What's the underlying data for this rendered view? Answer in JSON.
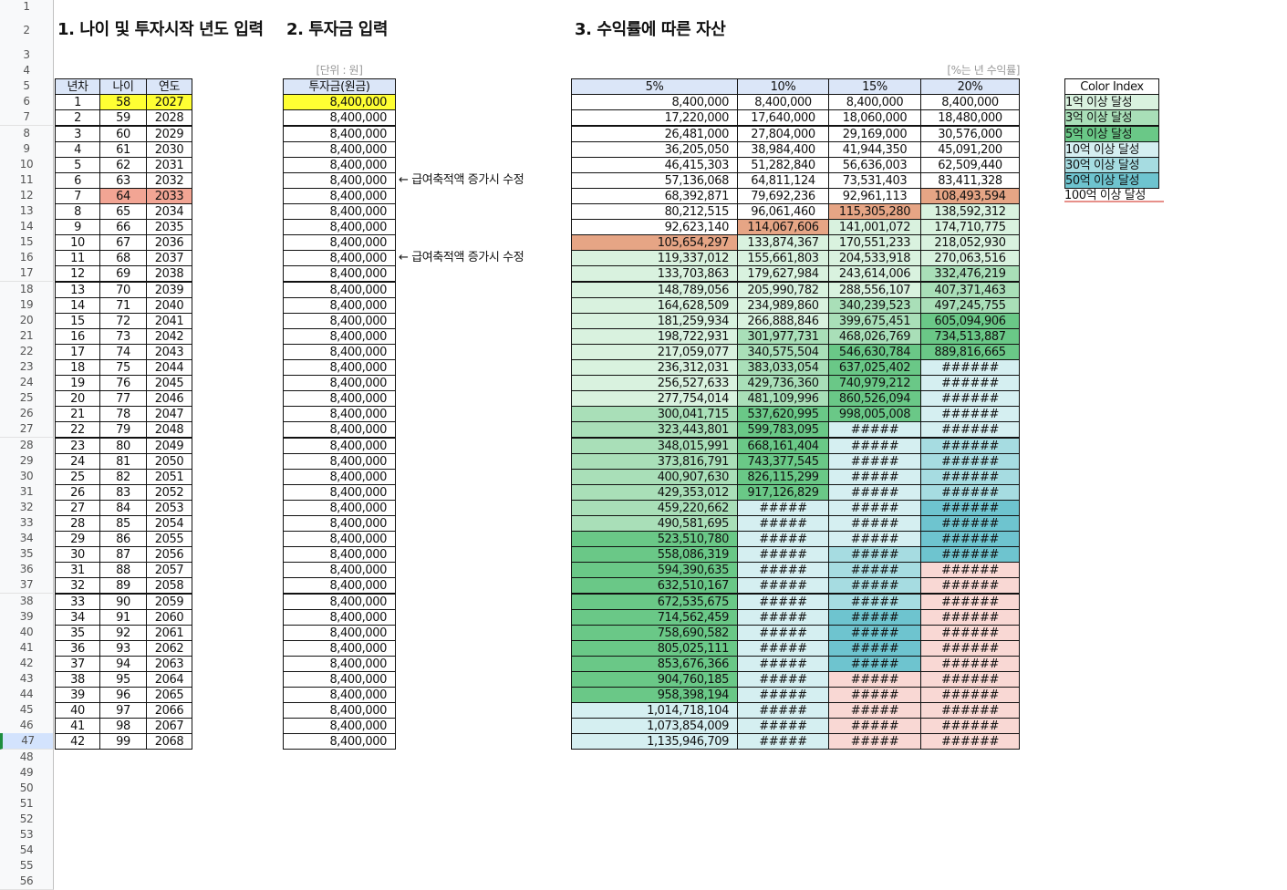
{
  "titles": {
    "age": "1. 나이 및 투자시작 년도 입력",
    "investment": "2. 투자금 입력",
    "returns": "3. 수익률에 따른 자산"
  },
  "row_numbers": [
    1,
    2,
    3,
    4,
    5,
    6,
    7,
    8,
    9,
    10,
    11,
    12,
    13,
    14,
    15,
    16,
    17,
    18,
    19,
    20,
    21,
    22,
    23,
    24,
    25,
    26,
    27,
    28,
    29,
    30,
    31,
    32,
    33,
    34,
    35,
    36,
    37,
    38,
    39,
    40,
    41,
    42,
    43,
    44,
    45,
    46,
    47,
    48,
    49,
    50,
    51,
    52,
    53,
    54,
    55,
    56
  ],
  "age_table": {
    "headers": [
      "년차",
      "나이",
      "연도"
    ],
    "rows": [
      [
        1,
        58,
        2027
      ],
      [
        2,
        59,
        2028
      ],
      [
        3,
        60,
        2029
      ],
      [
        4,
        61,
        2030
      ],
      [
        5,
        62,
        2031
      ],
      [
        6,
        63,
        2032
      ],
      [
        7,
        64,
        2033
      ],
      [
        8,
        65,
        2034
      ],
      [
        9,
        66,
        2035
      ],
      [
        10,
        67,
        2036
      ],
      [
        11,
        68,
        2037
      ],
      [
        12,
        69,
        2038
      ],
      [
        13,
        70,
        2039
      ],
      [
        14,
        71,
        2040
      ],
      [
        15,
        72,
        2041
      ],
      [
        16,
        73,
        2042
      ],
      [
        17,
        74,
        2043
      ],
      [
        18,
        75,
        2044
      ],
      [
        19,
        76,
        2045
      ],
      [
        20,
        77,
        2046
      ],
      [
        21,
        78,
        2047
      ],
      [
        22,
        79,
        2048
      ],
      [
        23,
        80,
        2049
      ],
      [
        24,
        81,
        2050
      ],
      [
        25,
        82,
        2051
      ],
      [
        26,
        83,
        2052
      ],
      [
        27,
        84,
        2053
      ],
      [
        28,
        85,
        2054
      ],
      [
        29,
        86,
        2055
      ],
      [
        30,
        87,
        2056
      ],
      [
        31,
        88,
        2057
      ],
      [
        32,
        89,
        2058
      ],
      [
        33,
        90,
        2059
      ],
      [
        34,
        91,
        2060
      ],
      [
        35,
        92,
        2061
      ],
      [
        36,
        93,
        2062
      ],
      [
        37,
        94,
        2063
      ],
      [
        38,
        95,
        2064
      ],
      [
        39,
        96,
        2065
      ],
      [
        40,
        97,
        2066
      ],
      [
        41,
        98,
        2067
      ],
      [
        42,
        99,
        2068
      ]
    ]
  },
  "investment_table": {
    "unit": "[단위 : 원]",
    "header": "투자금(원금)",
    "rows": [
      "8,400,000",
      "8,400,000",
      "8,400,000",
      "8,400,000",
      "8,400,000",
      "8,400,000",
      "8,400,000",
      "8,400,000",
      "8,400,000",
      "8,400,000",
      "8,400,000",
      "8,400,000",
      "8,400,000",
      "8,400,000",
      "8,400,000",
      "8,400,000",
      "8,400,000",
      "8,400,000",
      "8,400,000",
      "8,400,000",
      "8,400,000",
      "8,400,000",
      "8,400,000",
      "8,400,000",
      "8,400,000",
      "8,400,000",
      "8,400,000",
      "8,400,000",
      "8,400,000",
      "8,400,000",
      "8,400,000",
      "8,400,000",
      "8,400,000",
      "8,400,000",
      "8,400,000",
      "8,400,000",
      "8,400,000",
      "8,400,000",
      "8,400,000",
      "8,400,000",
      "8,400,000",
      "8,400,000"
    ],
    "notes": [
      {
        "row": 5,
        "text": "← 급여축적액 증가시 수정"
      },
      {
        "row": 10,
        "text": "← 급여축적액 증가시 수정"
      }
    ]
  },
  "returns_table": {
    "unit": "[%는 년 수익률]",
    "headers": [
      "5%",
      "10%",
      "15%",
      "20%"
    ],
    "rows": [
      [
        "8,400,000",
        "8,400,000",
        "8,400,000",
        "8,400,000"
      ],
      [
        "17,220,000",
        "17,640,000",
        "18,060,000",
        "18,480,000"
      ],
      [
        "26,481,000",
        "27,804,000",
        "29,169,000",
        "30,576,000"
      ],
      [
        "36,205,050",
        "38,984,400",
        "41,944,350",
        "45,091,200"
      ],
      [
        "46,415,303",
        "51,282,840",
        "56,636,003",
        "62,509,440"
      ],
      [
        "57,136,068",
        "64,811,124",
        "73,531,403",
        "83,411,328"
      ],
      [
        "68,392,871",
        "79,692,236",
        "92,961,113",
        "108,493,594"
      ],
      [
        "80,212,515",
        "96,061,460",
        "115,305,280",
        "138,592,312"
      ],
      [
        "92,623,140",
        "114,067,606",
        "141,001,072",
        "174,710,775"
      ],
      [
        "105,654,297",
        "133,874,367",
        "170,551,233",
        "218,052,930"
      ],
      [
        "119,337,012",
        "155,661,803",
        "204,533,918",
        "270,063,516"
      ],
      [
        "133,703,863",
        "179,627,984",
        "243,614,006",
        "332,476,219"
      ],
      [
        "148,789,056",
        "205,990,782",
        "288,556,107",
        "407,371,463"
      ],
      [
        "164,628,509",
        "234,989,860",
        "340,239,523",
        "497,245,755"
      ],
      [
        "181,259,934",
        "266,888,846",
        "399,675,451",
        "605,094,906"
      ],
      [
        "198,722,931",
        "301,977,731",
        "468,026,769",
        "734,513,887"
      ],
      [
        "217,059,077",
        "340,575,504",
        "546,630,784",
        "889,816,665"
      ],
      [
        "236,312,031",
        "383,033,054",
        "637,025,402",
        "######"
      ],
      [
        "256,527,633",
        "429,736,360",
        "740,979,212",
        "######"
      ],
      [
        "277,754,014",
        "481,109,996",
        "860,526,094",
        "######"
      ],
      [
        "300,041,715",
        "537,620,995",
        "998,005,008",
        "######"
      ],
      [
        "323,443,801",
        "599,783,095",
        "#####",
        "######"
      ],
      [
        "348,015,991",
        "668,161,404",
        "#####",
        "######"
      ],
      [
        "373,816,791",
        "743,377,545",
        "#####",
        "######"
      ],
      [
        "400,907,630",
        "826,115,299",
        "#####",
        "######"
      ],
      [
        "429,353,012",
        "917,126,829",
        "#####",
        "######"
      ],
      [
        "459,220,662",
        "#####",
        "#####",
        "######"
      ],
      [
        "490,581,695",
        "#####",
        "#####",
        "######"
      ],
      [
        "523,510,780",
        "#####",
        "#####",
        "######"
      ],
      [
        "558,086,319",
        "#####",
        "#####",
        "######"
      ],
      [
        "594,390,635",
        "#####",
        "#####",
        "######"
      ],
      [
        "632,510,167",
        "#####",
        "#####",
        "######"
      ],
      [
        "672,535,675",
        "#####",
        "#####",
        "######"
      ],
      [
        "714,562,459",
        "#####",
        "#####",
        "######"
      ],
      [
        "758,690,582",
        "#####",
        "#####",
        "######"
      ],
      [
        "805,025,111",
        "#####",
        "#####",
        "######"
      ],
      [
        "853,676,366",
        "#####",
        "#####",
        "######"
      ],
      [
        "904,760,185",
        "#####",
        "#####",
        "######"
      ],
      [
        "958,398,194",
        "#####",
        "#####",
        "######"
      ],
      [
        "1,014,718,104",
        "#####",
        "#####",
        "######"
      ],
      [
        "1,073,854,009",
        "#####",
        "#####",
        "######"
      ],
      [
        "1,135,946,709",
        "#####",
        "#####",
        "######"
      ]
    ],
    "fill_levels": [
      [
        -1,
        -1,
        -1,
        -1
      ],
      [
        -1,
        -1,
        -1,
        -1
      ],
      [
        -1,
        -1,
        -1,
        -1
      ],
      [
        -1,
        -1,
        -1,
        -1
      ],
      [
        -1,
        -1,
        -1,
        -1
      ],
      [
        -1,
        -1,
        -1,
        -1
      ],
      [
        -1,
        -1,
        -1,
        0
      ],
      [
        -1,
        -1,
        0,
        0
      ],
      [
        -1,
        0,
        0,
        0
      ],
      [
        0,
        0,
        0,
        0
      ],
      [
        0,
        0,
        0,
        0
      ],
      [
        0,
        0,
        0,
        1
      ],
      [
        0,
        0,
        0,
        1
      ],
      [
        0,
        0,
        1,
        1
      ],
      [
        0,
        0,
        1,
        2
      ],
      [
        0,
        1,
        1,
        2
      ],
      [
        0,
        1,
        2,
        2
      ],
      [
        0,
        1,
        2,
        3
      ],
      [
        0,
        1,
        2,
        3
      ],
      [
        0,
        1,
        2,
        3
      ],
      [
        1,
        2,
        2,
        3
      ],
      [
        1,
        2,
        3,
        3
      ],
      [
        1,
        2,
        3,
        4
      ],
      [
        1,
        2,
        3,
        4
      ],
      [
        1,
        2,
        3,
        4
      ],
      [
        1,
        2,
        3,
        4
      ],
      [
        1,
        3,
        3,
        5
      ],
      [
        1,
        3,
        3,
        5
      ],
      [
        2,
        3,
        3,
        5
      ],
      [
        2,
        3,
        4,
        5
      ],
      [
        2,
        3,
        4,
        6
      ],
      [
        2,
        3,
        4,
        6
      ],
      [
        2,
        3,
        4,
        6
      ],
      [
        2,
        3,
        5,
        6
      ],
      [
        2,
        3,
        5,
        6
      ],
      [
        2,
        3,
        5,
        6
      ],
      [
        2,
        3,
        5,
        6
      ],
      [
        2,
        3,
        6,
        6
      ],
      [
        2,
        3,
        6,
        6
      ],
      [
        3,
        3,
        6,
        6
      ],
      [
        3,
        3,
        6,
        6
      ],
      [
        3,
        3,
        6,
        6
      ]
    ]
  },
  "color_index": {
    "header": "Color Index",
    "items": [
      {
        "label": "1억 이상 달성",
        "color": "#d9f2df"
      },
      {
        "label": "3억 이상 달성",
        "color": "#a9dfb8"
      },
      {
        "label": "5억 이상 달성",
        "color": "#6ac887"
      },
      {
        "label": "10억 이상 달성",
        "color": "#d5eff1"
      },
      {
        "label": "30억 이상 달성",
        "color": "#a6dce1"
      },
      {
        "label": "50억 이상 달성",
        "color": "#6ec4cf"
      },
      {
        "label": "100억 이상 달성",
        "color": "#f9d8d4"
      }
    ]
  },
  "highlights": [
    {
      "table": "age_table",
      "row": 0,
      "cols": [
        1,
        2
      ],
      "color": "#ffff33"
    },
    {
      "table": "investment_table",
      "row": 0,
      "cols": [
        0
      ],
      "color": "#ffff33"
    },
    {
      "table": "age_table",
      "row": 6,
      "cols": [
        1,
        2
      ],
      "color": "#f2a594"
    },
    {
      "table": "returns_table",
      "row": 9,
      "cols": [
        0
      ],
      "color": "#e6a585"
    },
    {
      "table": "returns_table",
      "row": 8,
      "cols": [
        1
      ],
      "color": "#e6a585"
    },
    {
      "table": "returns_table",
      "row": 7,
      "cols": [
        2
      ],
      "color": "#e6a585"
    },
    {
      "table": "returns_table",
      "row": 6,
      "cols": [
        3
      ],
      "color": "#e6a585"
    }
  ]
}
